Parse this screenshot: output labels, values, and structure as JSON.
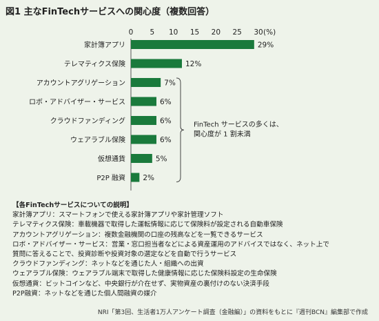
{
  "title": "図1 主なFinTechサービスへの関心度（複数回答）",
  "chart_data": {
    "type": "bar",
    "orientation": "horizontal",
    "categories": [
      "家計簿アプリ",
      "テレマティクス保険",
      "アカウントアグリゲーション",
      "ロボ・アドバイザー・サービス",
      "クラウドファンディング",
      "ウェアラブル保険",
      "仮想通貨",
      "P2P 融資"
    ],
    "values": [
      29,
      12,
      7,
      6,
      6,
      6,
      5,
      2
    ],
    "value_labels": [
      "29%",
      "12%",
      "7%",
      "6%",
      "6%",
      "6%",
      "5%",
      "2%"
    ],
    "x_ticks": [
      "0",
      "5",
      "10",
      "15",
      "20",
      "25",
      "30"
    ],
    "x_unit": "(%)",
    "xlim": [
      0,
      30
    ],
    "grid": false,
    "bar_color": "#1a7a3c",
    "annotation": "FinTech サービスの多くは、\n関心度が 1 割未満"
  },
  "notes": {
    "heading": "【各FinTechサービスについての説明】",
    "lines": [
      "家計簿アプリ：スマートフォンで使える家計簿アプリや家計管理ソフト",
      "テレマティクス保険：車載機器で取得した運転情報に応じて保険料が設定される自動車保険",
      "アカウントアグリゲーション：複数金融機関の口座の残高などを一覧できるサービス",
      "ロボ・アドバイザー・サービス：営業・窓口担当者などによる資産運用のアドバイスではなく、ネット上で",
      "質問に答えることで、投資診断や投資対象の選定などを自動で行うサービス",
      "クラウドファンディング：ネットなどを通じた人・組織への出資",
      "ウェアラブル保険：ウェアラブル端末で取得した健康情報に応じた保険料設定の生命保険",
      "仮想通貨：ビットコインなど、中央銀行が介在せず、実物資産の裏付けのない決済手段",
      "P2P融資：ネットなどを通じた個人間融資の媒介"
    ]
  },
  "source": "NRI「第3回、生活者1万人アンケート調査（金融編）」の資料をもとに『週刊BCN』編集部で作成"
}
